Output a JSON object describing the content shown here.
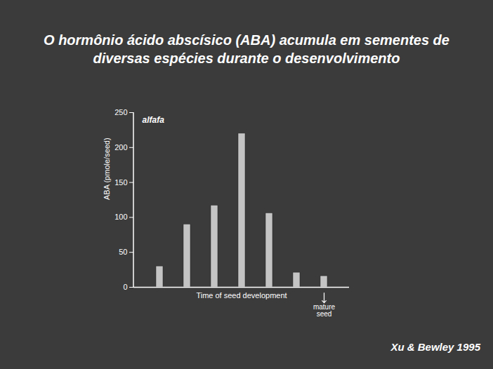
{
  "chart_data": {
    "type": "bar",
    "title": "O hormônio ácido abscísico (ABA) acumula em sementes de diversas espécies durante o desenvolvimento",
    "panel_label": "alfafa",
    "x_label": "Time of seed development",
    "y_label": "ABA (pmole/seed)",
    "categories": [
      null,
      null,
      null,
      null,
      null,
      null,
      null
    ],
    "values": [
      30,
      90,
      117,
      220,
      106,
      21,
      16
    ],
    "color": "#c4c4c4",
    "ylim": [
      0,
      250
    ],
    "yticks": [
      0,
      50,
      100,
      150,
      200,
      250
    ],
    "grid": false,
    "annotations": [
      "mature seed"
    ],
    "source": "Xu & Bewley 1995"
  }
}
